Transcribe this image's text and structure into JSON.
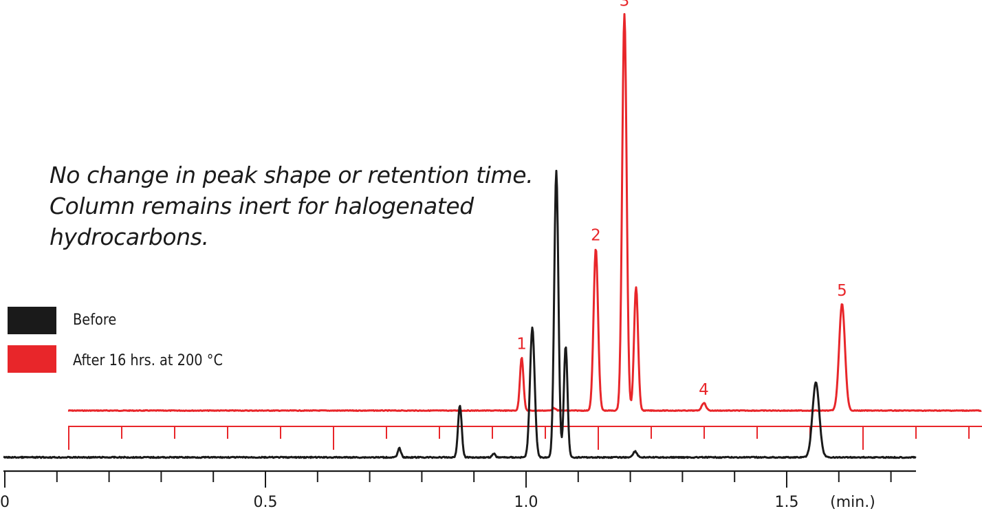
{
  "annotation": {
    "line1": "No change in peak shape or retention time.",
    "line2": "Column remains inert for halogenated",
    "line3": "hydrocarbons."
  },
  "legend": [
    {
      "label": "Before",
      "color": "#1a1a1a"
    },
    {
      "label": "After 16 hrs. at 200 °C",
      "color": "#e8262a"
    }
  ],
  "chart_data": {
    "type": "line",
    "title": "",
    "xlabel": "(min.)",
    "ylabel": "",
    "xlim": [
      0,
      1.74
    ],
    "x_ticks": [
      "0",
      "0.5",
      "1.0",
      "1.5"
    ],
    "x_tick_values": [
      0,
      0.5,
      1.0,
      1.5
    ],
    "grid": false,
    "legend_position": "left",
    "series": [
      {
        "name": "Before",
        "color": "#1a1a1a",
        "baseline": 0,
        "peaks": [
          {
            "x": 0.757,
            "height": 0.02,
            "width": 0.003
          },
          {
            "x": 0.873,
            "height": 0.115,
            "width": 0.0035
          },
          {
            "x": 0.938,
            "height": 0.008,
            "width": 0.003
          },
          {
            "x": 1.012,
            "height": 0.285,
            "width": 0.0045
          },
          {
            "x": 1.058,
            "height": 0.63,
            "width": 0.004
          },
          {
            "x": 1.076,
            "height": 0.245,
            "width": 0.0035
          },
          {
            "x": 1.209,
            "height": 0.013,
            "width": 0.004
          },
          {
            "x": 1.556,
            "height": 0.165,
            "width": 0.0065
          }
        ]
      },
      {
        "name": "After 16 hrs. at 200 °C",
        "color": "#e8262a",
        "baseline": 0,
        "peaks": [
          {
            "x": 0.978,
            "height": 0.125,
            "width": 0.0033,
            "label": "1"
          },
          {
            "x": 1.039,
            "height": 0.006,
            "width": 0.003
          },
          {
            "x": 1.118,
            "height": 0.38,
            "width": 0.0042,
            "label": "2"
          },
          {
            "x": 1.172,
            "height": 0.93,
            "width": 0.0042,
            "label": "3"
          },
          {
            "x": 1.194,
            "height": 0.29,
            "width": 0.0038
          },
          {
            "x": 1.322,
            "height": 0.018,
            "width": 0.004,
            "label": "4"
          },
          {
            "x": 1.583,
            "height": 0.25,
            "width": 0.0055,
            "label": "5"
          }
        ]
      }
    ]
  }
}
